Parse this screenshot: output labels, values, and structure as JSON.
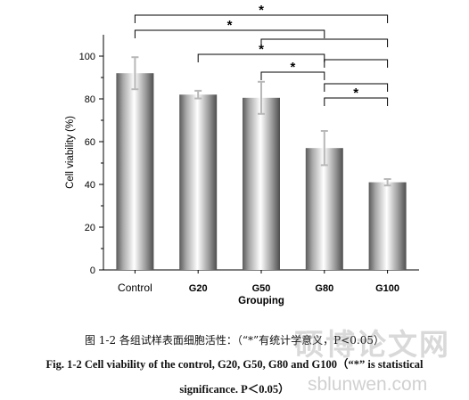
{
  "chart_data": {
    "type": "bar",
    "categories": [
      "Control",
      "G20",
      "G50",
      "G80",
      "G100"
    ],
    "values": [
      92,
      82,
      80.5,
      57,
      41
    ],
    "errors": [
      7.5,
      1.8,
      7.5,
      8,
      1.5
    ],
    "xlabel": "Grouping",
    "ylabel": "Cell viability (%)",
    "ylim": [
      0,
      110
    ],
    "yticks": [
      0,
      20,
      40,
      60,
      80,
      100
    ],
    "grid": false,
    "significance": [
      {
        "from": "Control",
        "to": "G100",
        "label": "*"
      },
      {
        "from": "Control",
        "to": "G80",
        "label": "*"
      },
      {
        "from": "G50",
        "to": "G100",
        "label": ""
      },
      {
        "from": "G20",
        "to": "G80",
        "label": "*"
      },
      {
        "from": "G80",
        "to": "G100",
        "label": ""
      },
      {
        "from": "G50",
        "to": "G80",
        "label": "*"
      },
      {
        "from": "G80",
        "to": "G100",
        "label": ""
      },
      {
        "from": "G80",
        "to": "G100",
        "label": "*"
      }
    ]
  },
  "caption": {
    "cn": "图 1-2  各组试样表面细胞活性：（“*”有统计学意义，P<0.05）",
    "en_line1": "Fig. 1-2 Cell viability of the control, G20, G50, G80 and G100（“*” is statistical",
    "en_line2": "significance. P＜0.05）"
  },
  "watermark": {
    "text": "硕博论文网",
    "url": "sblunwen.com"
  }
}
